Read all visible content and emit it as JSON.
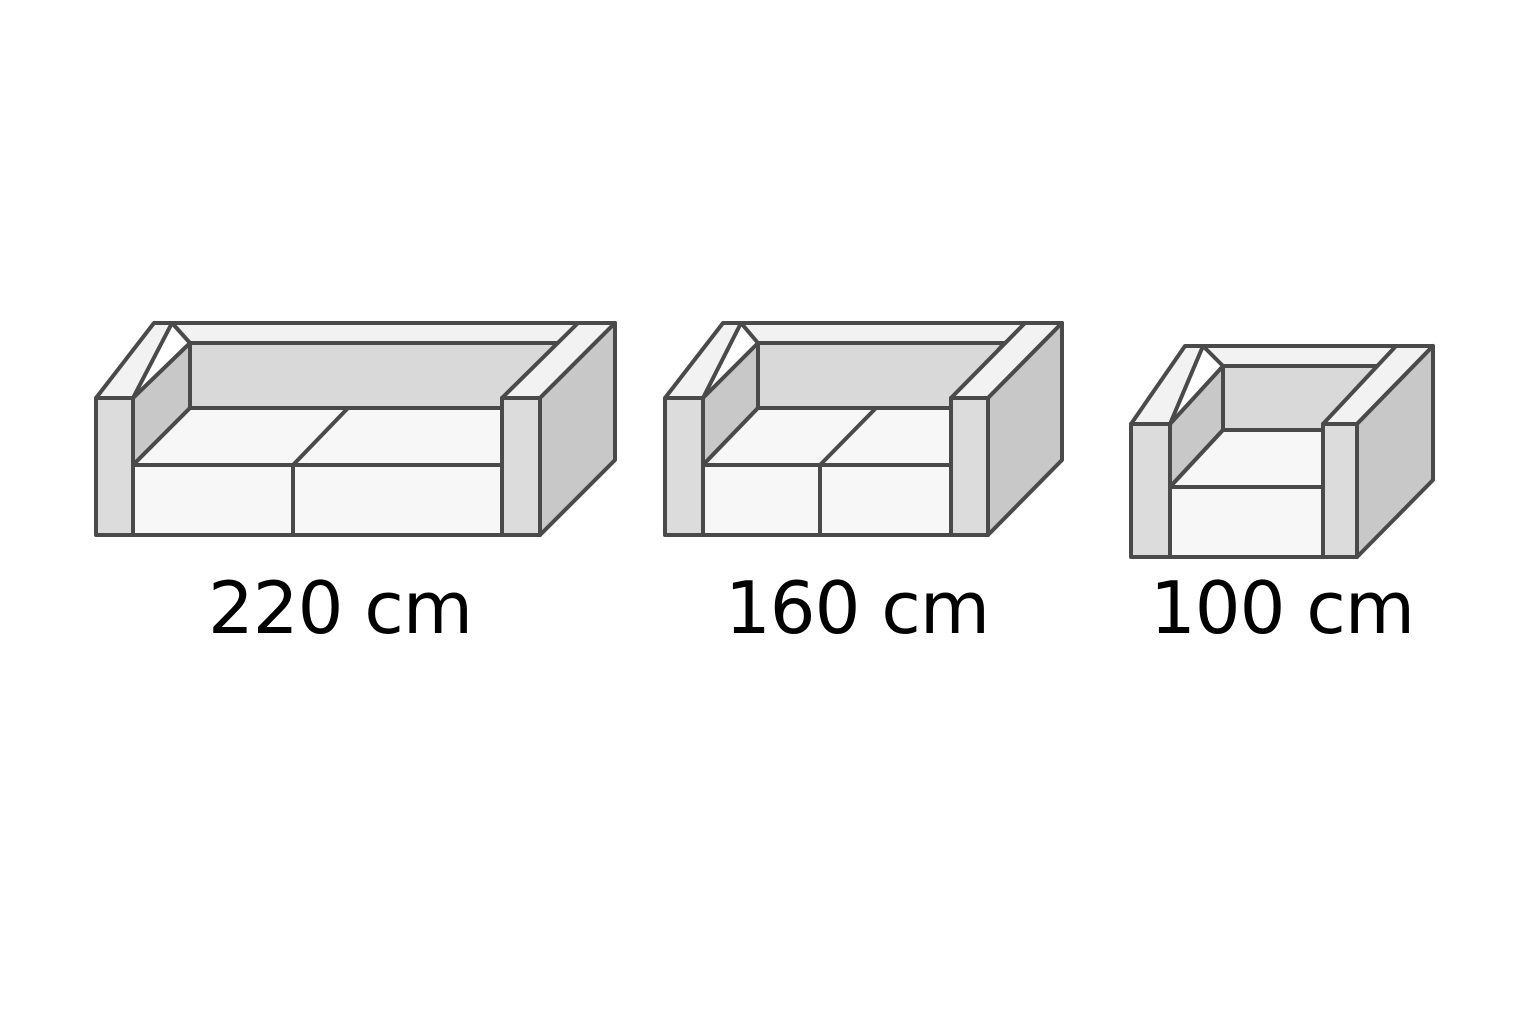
{
  "items": [
    {
      "id": "sofa-3-seat",
      "width_label": "220 cm",
      "seats": 2
    },
    {
      "id": "sofa-2-seat",
      "width_label": "160 cm",
      "seats": 2
    },
    {
      "id": "armchair",
      "width_label": "100 cm",
      "seats": 1
    }
  ],
  "colors": {
    "outline": "#4a4a4a",
    "seat": "#f7f7f7",
    "armrest_front": "#dcdcdc",
    "back_inner": "#d9d9d9",
    "side": "#c8c8c8",
    "top_rim": "#f2f2f2",
    "text": "#000000"
  }
}
